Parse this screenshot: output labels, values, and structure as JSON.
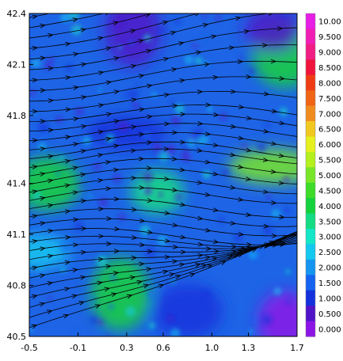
{
  "chart_data": {
    "type": "heatmap",
    "title": "",
    "xlabel": "",
    "ylabel": "",
    "xlim": [
      -0.5,
      1.7
    ],
    "ylim": [
      40.5,
      42.4
    ],
    "x_ticks": [
      "-0.5",
      "-0.1",
      "0.3",
      "0.6",
      "1.0",
      "1.3",
      "1.7"
    ],
    "y_ticks": [
      "42.4",
      "42.1",
      "41.8",
      "41.4",
      "41.1",
      "40.8",
      "40.5"
    ],
    "overlay": "streamlines",
    "colorbar": {
      "placement": "right",
      "labels": [
        "10.00",
        "9.500",
        "9.000",
        "8.500",
        "8.000",
        "7.500",
        "7.000",
        "6.500",
        "6.000",
        "5.500",
        "5.000",
        "4.500",
        "4.000",
        "3.500",
        "3.000",
        "2.500",
        "2.000",
        "1.500",
        "1.000",
        "0.500",
        "0.000"
      ],
      "colors": [
        "#e61ee6",
        "#f01eb4",
        "#f01e82",
        "#f0143c",
        "#f03c14",
        "#f06414",
        "#f08c1e",
        "#f0c81e",
        "#e6f01e",
        "#b4f01e",
        "#78e628",
        "#3cdc28",
        "#14d23c",
        "#14dc82",
        "#14e6c8",
        "#14c8f0",
        "#1496f0",
        "#1464f0",
        "#1432dc",
        "#5014c8",
        "#8c14e6"
      ]
    },
    "field_regions": [
      {
        "x": 1.5,
        "y": 41.5,
        "value": 4.8
      },
      {
        "x": -0.35,
        "y": 41.4,
        "value": 4.0
      },
      {
        "x": 0.25,
        "y": 40.75,
        "value": 3.8
      },
      {
        "x": 0.55,
        "y": 41.35,
        "value": 3.6
      },
      {
        "x": 1.6,
        "y": 42.15,
        "value": 4.0
      },
      {
        "x": 0.3,
        "y": 41.7,
        "value": 1.2
      },
      {
        "x": 0.8,
        "y": 40.65,
        "value": 0.8
      },
      {
        "x": 0.35,
        "y": 42.3,
        "value": 0.3
      },
      {
        "x": 1.5,
        "y": 42.3,
        "value": 0.3
      },
      {
        "x": 1.6,
        "y": 40.58,
        "value": 0.2
      },
      {
        "x": -0.45,
        "y": 41.0,
        "value": 2.5
      }
    ]
  }
}
